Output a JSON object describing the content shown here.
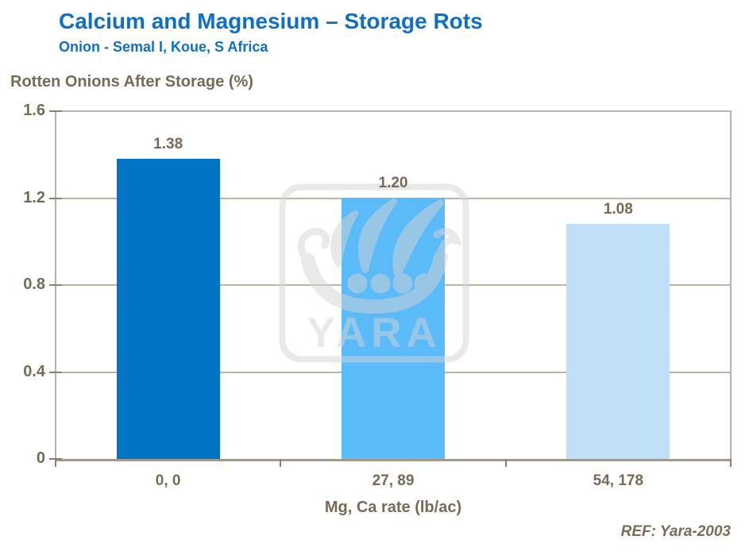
{
  "header": {
    "title": "Calcium and Magnesium – Storage Rots",
    "subtitle": "Onion - Semal I, Koue, S Africa"
  },
  "chart_data": {
    "type": "bar",
    "title": "Rotten Onions After Storage (%)",
    "categories": [
      "0, 0",
      "27, 89",
      "54, 178"
    ],
    "values": [
      1.38,
      1.2,
      1.08
    ],
    "value_labels": [
      "1.38",
      "1.20",
      "1.08"
    ],
    "xlabel": "Mg, Ca rate (lb/ac)",
    "ylabel": "Rotten Onions After Storage (%)",
    "ylim": [
      0,
      1.6
    ],
    "yticks": [
      0,
      0.4,
      0.8,
      1.2,
      1.6
    ],
    "ytick_labels": [
      "0",
      "0.4",
      "0.8",
      "1.2",
      "1.6"
    ],
    "grid": "horizontal",
    "legend": "none",
    "bar_colors": [
      "#0173c5",
      "#5bbaf8",
      "#bfe0f8"
    ]
  },
  "watermark": {
    "text": "YARA",
    "icon": "yara-viking-ship-logo",
    "color": "#d4d4d4"
  },
  "footer": {
    "ref": "REF: Yara-2003"
  },
  "colors": {
    "title_blue": "#0d70c4",
    "label_brown": "#776a57",
    "gridline": "#bfb5a6",
    "plot_frame": "#b3b3b3",
    "axis_line": "#a49a8b",
    "tick": "#8c7f6e"
  }
}
